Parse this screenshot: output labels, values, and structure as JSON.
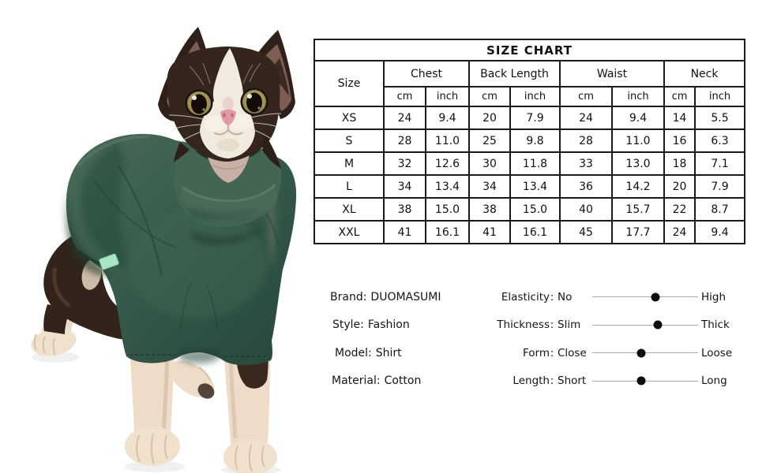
{
  "photo": {
    "description": "Sphynx kitten wearing a dark green turtleneck sweater",
    "sweater_color": "#35594a",
    "tag_color": "#a8e6c6"
  },
  "size_chart": {
    "title": "SIZE CHART",
    "size_col_header": "Size",
    "groups": [
      {
        "label": "Chest",
        "units": [
          "cm",
          "inch"
        ]
      },
      {
        "label": "Back Length",
        "units": [
          "cm",
          "inch"
        ]
      },
      {
        "label": "Waist",
        "units": [
          "cm",
          "inch"
        ]
      },
      {
        "label": "Neck",
        "units": [
          "cm",
          "inch"
        ]
      }
    ],
    "rows": [
      {
        "size": "XS",
        "cells": [
          "24",
          "9.4",
          "20",
          "7.9",
          "24",
          "9.4",
          "14",
          "5.5"
        ]
      },
      {
        "size": "S",
        "cells": [
          "28",
          "11.0",
          "25",
          "9.8",
          "28",
          "11.0",
          "16",
          "6.3"
        ]
      },
      {
        "size": "M",
        "cells": [
          "32",
          "12.6",
          "30",
          "11.8",
          "33",
          "13.0",
          "18",
          "7.1"
        ]
      },
      {
        "size": "L",
        "cells": [
          "34",
          "13.4",
          "34",
          "13.4",
          "36",
          "14.2",
          "20",
          "7.9"
        ]
      },
      {
        "size": "XL",
        "cells": [
          "38",
          "15.0",
          "38",
          "15.0",
          "40",
          "15.7",
          "22",
          "8.7"
        ]
      },
      {
        "size": "XXL",
        "cells": [
          "41",
          "16.1",
          "41",
          "16.1",
          "45",
          "17.7",
          "24",
          "9.4"
        ]
      }
    ]
  },
  "product_info": [
    {
      "label": "Brand:",
      "value": "DUOMASUMI"
    },
    {
      "label": "Style:",
      "value": "Fashion"
    },
    {
      "label": "Model:",
      "value": "Shirt"
    },
    {
      "label": "Material:",
      "value": "Cotton"
    }
  ],
  "attributes": [
    {
      "label": "Elasticity",
      "colon": ":",
      "min": "No",
      "max": "High",
      "position_pct": 60
    },
    {
      "label": "Thickness",
      "colon": ":",
      "min": "Slim",
      "max": "Thick",
      "position_pct": 62
    },
    {
      "label": "Form",
      "colon": ":",
      "min": "Close",
      "max": "Loose",
      "position_pct": 46
    },
    {
      "label": "Length",
      "colon": ":",
      "min": "Short",
      "max": "Long",
      "position_pct": 46
    }
  ]
}
